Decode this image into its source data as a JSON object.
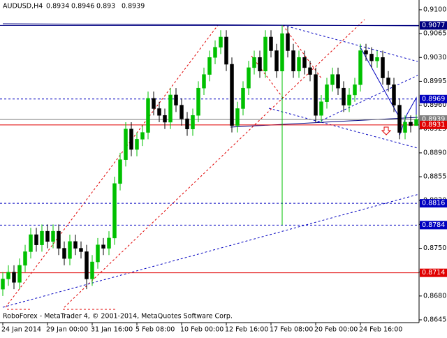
{
  "chart_data": {
    "type": "candlestick",
    "symbol": "AUDUSD,H4",
    "header_ohlc": [
      0.8934,
      0.8946,
      0.893,
      0.8939
    ],
    "footer": "RoboForex - MetaTrader 4, © 2001-2014, MetaQuotes Software Corp.",
    "categories": [
      "24 Jan 2014",
      null,
      null,
      null,
      null,
      null,
      null,
      null,
      "29 Jan 00:00",
      null,
      null,
      null,
      null,
      null,
      null,
      null,
      "31 Jan 16:00",
      null,
      null,
      null,
      null,
      null,
      null,
      null,
      "5 Feb 08:00",
      null,
      null,
      null,
      null,
      null,
      null,
      null,
      "10 Feb 00:00",
      null,
      null,
      null,
      null,
      null,
      null,
      null,
      "12 Feb 16:00",
      null,
      null,
      null,
      null,
      null,
      null,
      null,
      "17 Feb 08:00",
      null,
      null,
      null,
      null,
      null,
      null,
      null,
      "20 Feb 00:00",
      null,
      null,
      null,
      null,
      null,
      null,
      null,
      "24 Feb 16:00",
      null,
      null,
      null,
      null,
      null,
      null,
      null,
      null,
      null,
      null
    ],
    "open": [
      0.869,
      0.8705,
      0.8715,
      0.87,
      0.8725,
      0.8745,
      0.877,
      0.8755,
      0.8775,
      0.876,
      0.8775,
      0.875,
      0.8735,
      0.876,
      0.875,
      0.8745,
      0.8705,
      0.873,
      0.8755,
      0.875,
      0.8765,
      0.8845,
      0.888,
      0.8925,
      0.8895,
      0.891,
      0.892,
      0.897,
      0.8955,
      0.8945,
      0.8935,
      0.8975,
      0.896,
      0.894,
      0.8925,
      0.8945,
      0.8985,
      0.9005,
      0.903,
      0.9045,
      0.906,
      0.902,
      0.893,
      0.8955,
      0.8985,
      0.9015,
      0.903,
      0.901,
      0.906,
      0.904,
      0.901,
      0.9065,
      0.904,
      0.901,
      0.903,
      0.9015,
      0.9005,
      0.8945,
      0.8965,
      0.899,
      0.9005,
      0.8985,
      0.896,
      0.8975,
      0.899,
      0.904,
      0.9035,
      0.9025,
      0.903,
      0.9,
      0.899,
      0.896,
      0.892,
      0.8935,
      0.893
    ],
    "high": [
      0.8715,
      0.8725,
      0.8725,
      0.8735,
      0.8755,
      0.878,
      0.878,
      0.8785,
      0.8785,
      0.8785,
      0.8785,
      0.876,
      0.877,
      0.877,
      0.876,
      0.8755,
      0.874,
      0.8765,
      0.8765,
      0.8775,
      0.8855,
      0.889,
      0.8935,
      0.8935,
      0.892,
      0.893,
      0.898,
      0.898,
      0.8965,
      0.8955,
      0.8985,
      0.8985,
      0.897,
      0.895,
      0.8955,
      0.8995,
      0.9015,
      0.904,
      0.9055,
      0.907,
      0.907,
      0.903,
      0.8965,
      0.8995,
      0.9025,
      0.904,
      0.904,
      0.907,
      0.907,
      0.905,
      0.9077,
      0.9075,
      0.905,
      0.904,
      0.904,
      0.9025,
      0.9015,
      0.8975,
      0.9,
      0.9015,
      0.9015,
      0.8995,
      0.8985,
      0.9,
      0.905,
      0.905,
      0.9045,
      0.904,
      0.904,
      0.901,
      0.9,
      0.897,
      0.8945,
      0.8945,
      0.8946
    ],
    "low": [
      0.868,
      0.8695,
      0.869,
      0.869,
      0.8715,
      0.8735,
      0.8745,
      0.8745,
      0.875,
      0.875,
      0.874,
      0.8725,
      0.8725,
      0.874,
      0.8735,
      0.869,
      0.8695,
      0.872,
      0.874,
      0.874,
      0.8755,
      0.8835,
      0.887,
      0.8885,
      0.8885,
      0.89,
      0.891,
      0.8945,
      0.8935,
      0.8925,
      0.8925,
      0.895,
      0.893,
      0.8915,
      0.8915,
      0.8935,
      0.8975,
      0.8995,
      0.902,
      0.9035,
      0.901,
      0.892,
      0.892,
      0.8945,
      0.8975,
      0.9005,
      0.9,
      0.9,
      0.903,
      0.9,
      0.8784,
      0.903,
      0.9,
      0.9,
      0.9005,
      0.8995,
      0.8935,
      0.8935,
      0.8955,
      0.898,
      0.8975,
      0.895,
      0.895,
      0.8965,
      0.898,
      0.9025,
      0.9015,
      0.9015,
      0.899,
      0.898,
      0.895,
      0.891,
      0.891,
      0.892,
      0.893
    ],
    "close": [
      0.8705,
      0.8715,
      0.87,
      0.8725,
      0.8745,
      0.877,
      0.8755,
      0.8775,
      0.876,
      0.8775,
      0.875,
      0.8735,
      0.876,
      0.875,
      0.8745,
      0.8705,
      0.873,
      0.8755,
      0.875,
      0.8765,
      0.8845,
      0.888,
      0.8925,
      0.8895,
      0.891,
      0.892,
      0.897,
      0.8955,
      0.8945,
      0.8935,
      0.8975,
      0.896,
      0.894,
      0.8925,
      0.8945,
      0.8985,
      0.9005,
      0.903,
      0.9045,
      0.906,
      0.902,
      0.893,
      0.8955,
      0.8985,
      0.9015,
      0.903,
      0.901,
      0.906,
      0.904,
      0.901,
      0.9065,
      0.904,
      0.901,
      0.903,
      0.9015,
      0.9005,
      0.8945,
      0.8965,
      0.899,
      0.9005,
      0.8985,
      0.896,
      0.8975,
      0.899,
      0.904,
      0.9035,
      0.9025,
      0.903,
      0.9,
      0.899,
      0.896,
      0.892,
      0.8935,
      0.893,
      0.8939
    ],
    "up_color": "#00c000",
    "down_color": "#000000",
    "ylim": [
      0.86409,
      0.91143
    ],
    "yticks": [
      {
        "value": 0.91,
        "label": "0.9100"
      },
      0.9065,
      {
        "value": 0.903,
        "label": "0.9030"
      },
      0.8995,
      {
        "value": 0.896,
        "label": "0.8960"
      },
      0.8925,
      {
        "value": 0.889,
        "label": "0.8890"
      },
      0.8855,
      {
        "value": 0.882,
        "label": "0.8820"
      },
      0.8785,
      {
        "value": 0.875,
        "label": "0.8750"
      },
      0.8715,
      {
        "value": 0.868,
        "label": "0.8680"
      },
      0.8645
    ],
    "levels": [
      {
        "value": 0.9077,
        "color": "#000080",
        "dash": false
      },
      {
        "value": 0.8969,
        "color": "#0000c0",
        "dash": true
      },
      {
        "value": 0.8939,
        "color": "#808080",
        "dash": false
      },
      {
        "value": 0.8931,
        "color": "#e00000",
        "dash": false
      },
      {
        "value": 0.8816,
        "color": "#0000c0",
        "dash": true
      },
      {
        "value": 0.8784,
        "color": "#0000c0",
        "dash": true
      },
      {
        "value": 0.8714,
        "color": "#e00000",
        "dash": false
      }
    ]
  }
}
